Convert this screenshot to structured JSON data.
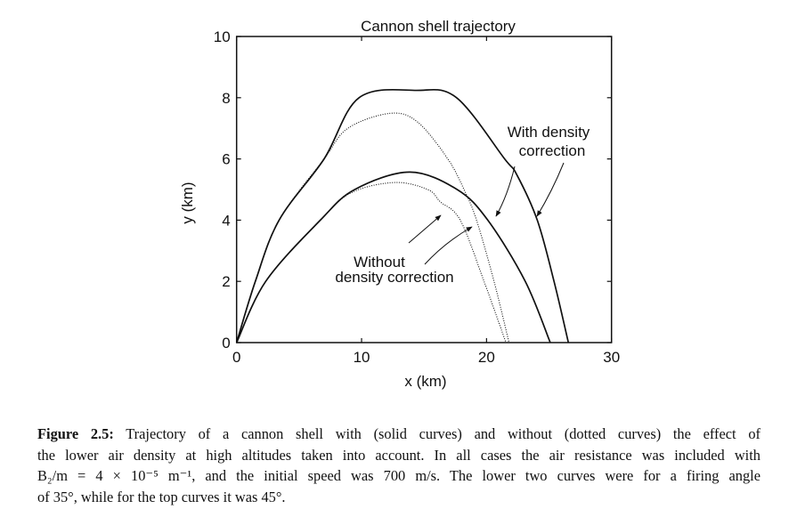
{
  "chart_data": {
    "type": "line",
    "title": "Cannon shell trajectory",
    "xlabel": "x (km)",
    "ylabel": "y (km)",
    "xlim": [
      0,
      30
    ],
    "ylim": [
      0,
      10
    ],
    "xticks": [
      "0",
      "10",
      "20",
      "30"
    ],
    "yticks": [
      "0",
      "2",
      "4",
      "6",
      "8",
      "10"
    ],
    "grid": false,
    "series": [
      {
        "style": "solid",
        "angle_deg": 45,
        "points": [
          [
            0,
            0
          ],
          [
            1.5,
            2
          ],
          [
            3.4,
            4
          ],
          [
            7,
            6
          ],
          [
            9.8,
            8
          ],
          [
            14.4,
            8.24
          ],
          [
            17.6,
            8
          ],
          [
            21.45,
            6
          ],
          [
            22.4,
            5.5
          ],
          [
            24.06,
            4
          ],
          [
            25.4,
            2
          ],
          [
            26.55,
            0
          ]
        ]
      },
      {
        "style": "dotted",
        "angle_deg": 45,
        "points": [
          [
            0,
            0
          ],
          [
            1.5,
            2
          ],
          [
            3.4,
            4
          ],
          [
            7,
            6
          ],
          [
            8.9,
            7
          ],
          [
            12.3,
            7.49
          ],
          [
            14.5,
            7.2
          ],
          [
            16.9,
            6
          ],
          [
            18.2,
            5
          ],
          [
            19.2,
            4
          ],
          [
            20.6,
            2
          ],
          [
            21.8,
            0
          ]
        ]
      },
      {
        "style": "solid",
        "angle_deg": 35,
        "points": [
          [
            0,
            0
          ],
          [
            2.33,
            2
          ],
          [
            6.7,
            4
          ],
          [
            9.45,
            5
          ],
          [
            13.85,
            5.57
          ],
          [
            17.65,
            5
          ],
          [
            20.1,
            4
          ],
          [
            23.1,
            2
          ],
          [
            25.1,
            0
          ]
        ]
      },
      {
        "style": "dotted",
        "angle_deg": 35,
        "points": [
          [
            0,
            0
          ],
          [
            2.33,
            2
          ],
          [
            6.7,
            4
          ],
          [
            9.2,
            4.9
          ],
          [
            12.66,
            5.23
          ],
          [
            15.3,
            5
          ],
          [
            16.3,
            4.6
          ],
          [
            17.9,
            4
          ],
          [
            19.8,
            2
          ],
          [
            21.55,
            0
          ]
        ]
      }
    ],
    "annotations": {
      "with_line1": "With density",
      "with_line2": "correction",
      "without_line1": "Without",
      "without_line2": "density correction"
    }
  },
  "caption": {
    "label": "Figure 2.5:",
    "line1": " Trajectory of a cannon shell with (solid curves) and without (dotted curves) the effect of",
    "line2": "the lower air density at high altitudes taken into account. In all cases the air resistance was included with",
    "line3": "B₂/m = 4 × 10⁻⁵ m⁻¹, and the initial speed was 700 m/s. The lower two curves were for a firing angle",
    "line4": "of 35°, while for the top curves it was 45°."
  }
}
